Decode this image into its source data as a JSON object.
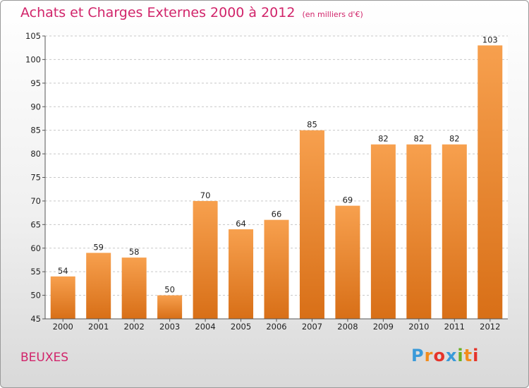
{
  "chart_data": {
    "type": "bar",
    "title": "Achats et Charges Externes 2000 à 2012",
    "subtitle": "(en milliers d'€)",
    "categories": [
      "2000",
      "2001",
      "2002",
      "2003",
      "2004",
      "2005",
      "2006",
      "2007",
      "2008",
      "2009",
      "2010",
      "2011",
      "2012"
    ],
    "values": [
      54,
      59,
      58,
      50,
      70,
      64,
      66,
      85,
      69,
      82,
      82,
      82,
      103
    ],
    "ylim": [
      45,
      105
    ],
    "yticks": [
      45,
      50,
      55,
      60,
      65,
      70,
      75,
      80,
      85,
      90,
      95,
      100,
      105
    ],
    "grid": true,
    "bar_color_top": "#f7a04e",
    "bar_color_bottom": "#d86f17"
  },
  "place_name": "BEUXES",
  "logo": {
    "letters": [
      "P",
      "r",
      "o",
      "x",
      "i",
      "t",
      "i"
    ],
    "colors": [
      "#3a9ad9",
      "#f28c1c",
      "#e5332a",
      "#3a9ad9",
      "#6ab023",
      "#f28c1c",
      "#e5332a"
    ]
  }
}
